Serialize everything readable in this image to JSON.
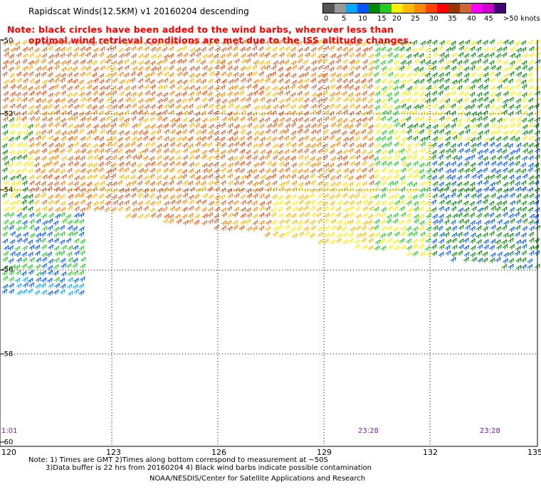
{
  "title": "Rapidscat Winds(12.5KM) v1 20160204 descending",
  "note": {
    "line1": "Note: black circles have been added to the wind barbs, wherever less than",
    "line2": "optimal wind retrieval conditions are met due to the ISS altitude changes."
  },
  "legend": {
    "colors": [
      "#555555",
      "#999999",
      "#00aaff",
      "#0055ff",
      "#008800",
      "#22cc22",
      "#ffee00",
      "#ffbb00",
      "#ff8800",
      "#ff4400",
      "#ff0000",
      "#993300",
      "#cc6633",
      "#ff00ff",
      "#cc00cc",
      "#440077"
    ],
    "labels": [
      "0",
      "5",
      "10",
      "15",
      "20",
      "25",
      "30",
      "35",
      "40",
      "45",
      ">50 knots"
    ]
  },
  "lat_labels": [
    "-50",
    "-52",
    "-54",
    "-56",
    "-58",
    "-60"
  ],
  "lon_labels": [
    "120",
    "123",
    "126",
    "129",
    "132",
    "135"
  ],
  "time_labels": [
    "1:01",
    "23:28",
    "23:28"
  ],
  "footer": {
    "line1": "Note: 1) Times are GMT 2)Times along bottom correspond to measurement at ~50S",
    "line2": "3)Data buffer is 22 hrs from 20160204 4) Black wind barbs indicate possible contamination",
    "line3": "NOAA/NESDIS/Center for Satellite Applications and Research"
  }
}
